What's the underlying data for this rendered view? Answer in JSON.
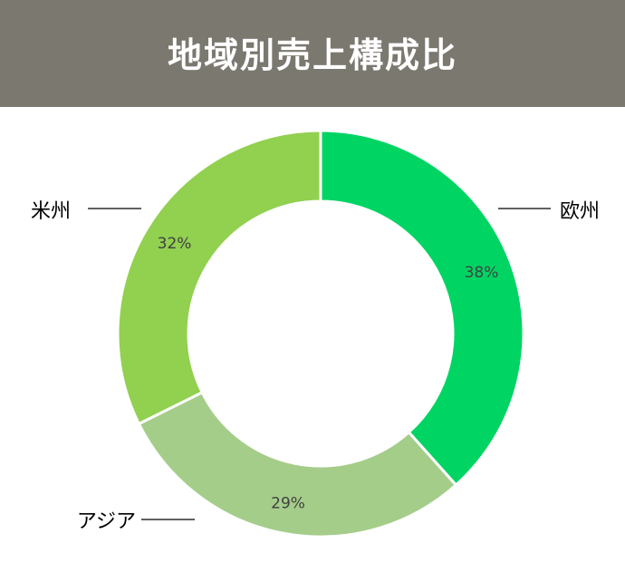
{
  "title": "地域別売上構成比",
  "colors": {
    "title_bar": "#7b7870",
    "title_text": "#ffffff",
    "europe": "#00d563",
    "asia": "#a5cd8a",
    "america": "#92d050",
    "percent_text": "#404040",
    "category_text": "#000000"
  },
  "chart_data": {
    "type": "pie",
    "variant": "donut",
    "title": "地域別売上構成比",
    "start_angle_deg": 0,
    "direction": "clockwise",
    "slices": [
      {
        "name": "欧州",
        "value": 38,
        "label": "38%",
        "color": "#00d563"
      },
      {
        "name": "アジア",
        "value": 29,
        "label": "29%",
        "color": "#a5cd8a"
      },
      {
        "name": "米州",
        "value": 32,
        "label": "32%",
        "color": "#92d050"
      }
    ],
    "legend": "none",
    "category_labels": "outside-with-leader-lines"
  }
}
